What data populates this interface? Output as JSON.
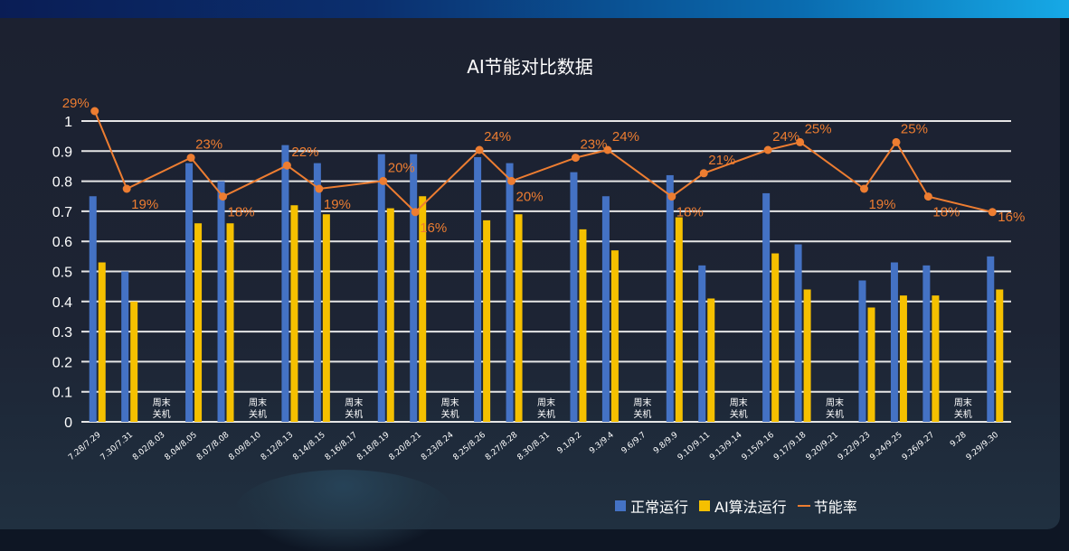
{
  "chart_data": {
    "type": "bar",
    "title": "AI节能对比数据",
    "categories": [
      "7.28/7.29",
      "7.30/7.31",
      "8.02/8.03",
      "8.04/8.05",
      "8.07/8.08",
      "8.09/8.10",
      "8.12/8.13",
      "8.14/8.15",
      "8.16/8.17",
      "8.18/8.19",
      "8.20/8.21",
      "8.23/8.24",
      "8.25/8.26",
      "8.27/8.28",
      "8.30/8.31",
      "9.1/9.2",
      "9.3/9.4",
      "9.6/9.7",
      "9.8/9.9",
      "9.10/9.11",
      "9.13/9.14",
      "9.15/9.16",
      "9.17/9.18",
      "9.20/9.21",
      "9.22/9.23",
      "9.24/9.25",
      "9.26/9.27",
      "9.28",
      "9.29/9.30"
    ],
    "off_label": [
      "周末",
      "关机"
    ],
    "series": [
      {
        "name": "正常运行",
        "type": "bar",
        "color": "#4472c4",
        "values": [
          0.75,
          0.5,
          null,
          0.86,
          0.8,
          null,
          0.92,
          0.86,
          null,
          0.89,
          0.89,
          null,
          0.88,
          0.86,
          null,
          0.83,
          0.75,
          null,
          0.82,
          0.52,
          null,
          0.76,
          0.59,
          null,
          0.47,
          0.53,
          0.52,
          null,
          0.55
        ]
      },
      {
        "name": "AI算法运行",
        "type": "bar",
        "color": "#f5c000",
        "values": [
          0.53,
          0.4,
          null,
          0.66,
          0.66,
          null,
          0.72,
          0.69,
          null,
          0.71,
          0.75,
          null,
          0.67,
          0.69,
          null,
          0.64,
          0.57,
          null,
          0.68,
          0.41,
          null,
          0.56,
          0.44,
          null,
          0.38,
          0.42,
          0.42,
          null,
          0.44
        ]
      },
      {
        "name": "节能率",
        "type": "line",
        "color": "#ed7d31",
        "unit": "%",
        "values": [
          29,
          19,
          null,
          23,
          18,
          null,
          22,
          19,
          null,
          20,
          16,
          null,
          24,
          20,
          null,
          23,
          24,
          null,
          18,
          21,
          null,
          24,
          25,
          null,
          19,
          25,
          18,
          null,
          16
        ]
      }
    ],
    "yticks": [
      0,
      0.1,
      0.2,
      0.3,
      0.4,
      0.5,
      0.6,
      0.7,
      0.8,
      0.9,
      1
    ],
    "ylim": [
      0,
      1
    ],
    "grid": true,
    "legend_position": "bottom-right"
  }
}
